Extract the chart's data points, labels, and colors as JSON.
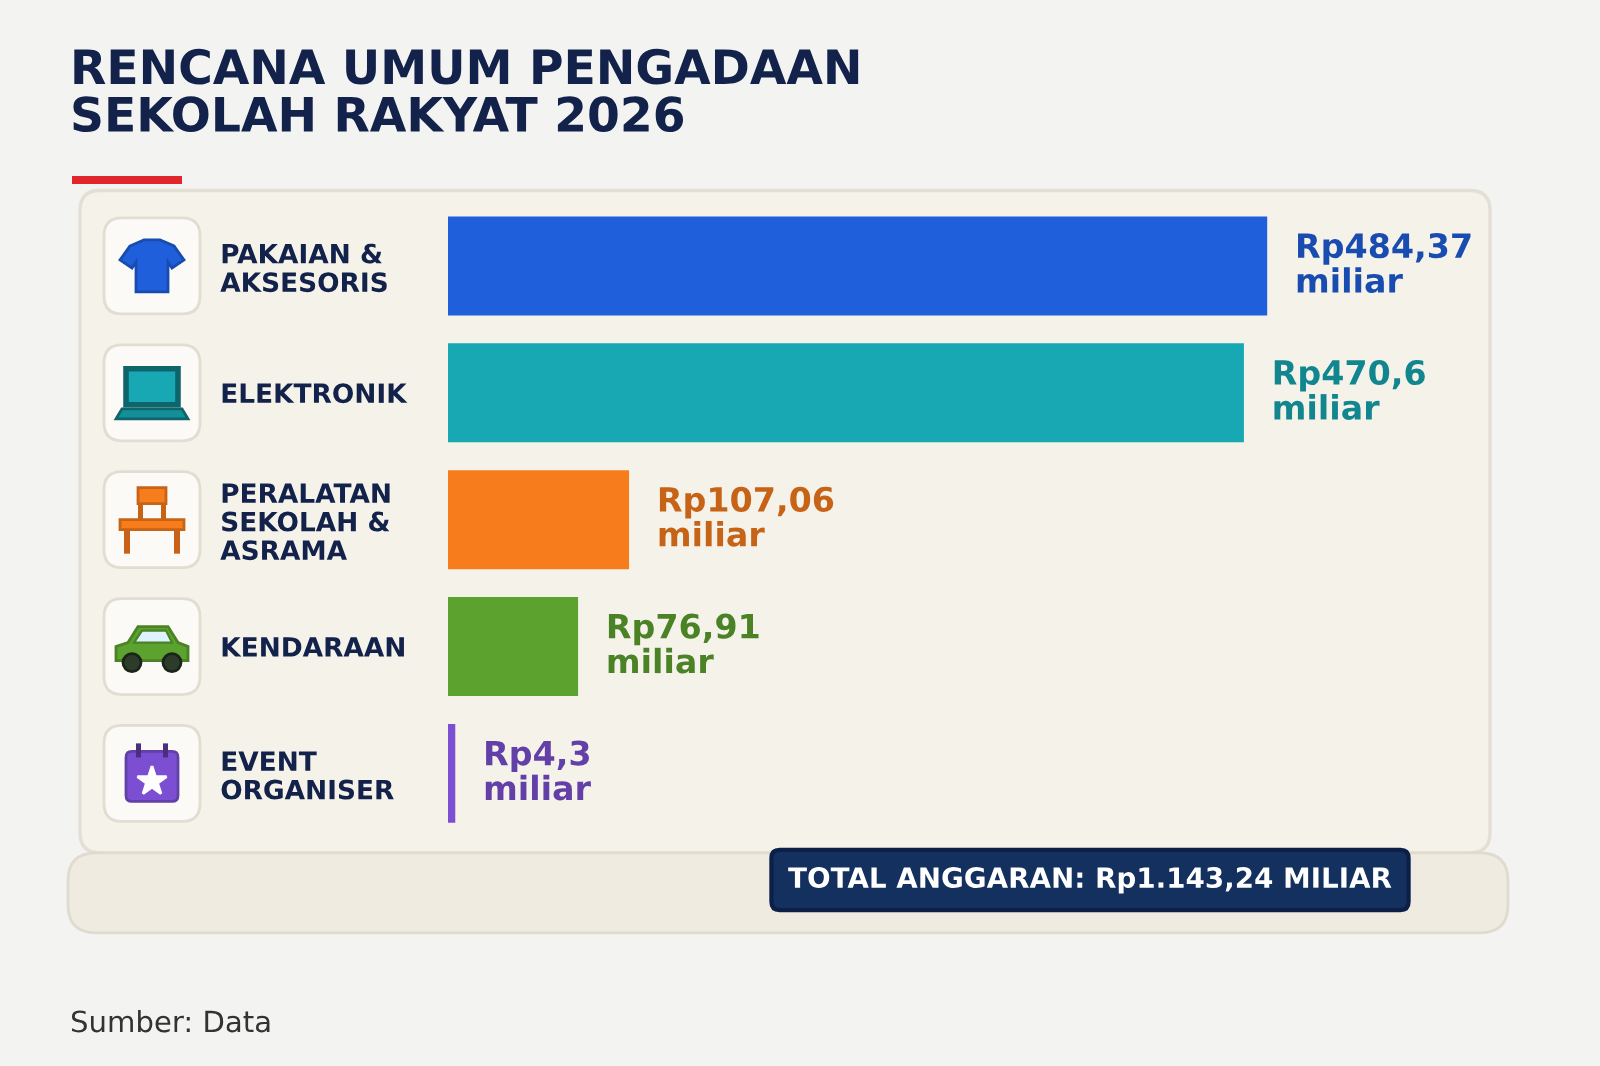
{
  "chart_data": {
    "type": "bar",
    "orientation": "horizontal",
    "title": "RENCANA UMUM PENGADAAN\nSEKOLAH RAKYAT 2026",
    "categories": [
      "PAKAIAN &\nAKSESORIS",
      "ELEKTRONIK",
      "PERALATAN\nSEKOLAH &\nASRAMA",
      "KENDARAAN",
      "EVENT\nORGANISER"
    ],
    "values": [
      484.37,
      470.6,
      107.06,
      76.91,
      4.3
    ],
    "colors": [
      "#1f5fdc",
      "#17a8b3",
      "#f77c1b",
      "#5ca22e",
      "#7c4fd2"
    ],
    "value_labels": [
      "Rp484,37\nmiliar",
      "Rp470,6\nmiliar",
      "Rp107,06\nmiliar",
      "Rp76,91\nmiliar",
      "Rp4,3\nmiliar"
    ],
    "annotations": [
      "TOTAL ANGGARAN: Rp1.143,24 MILIAR",
      "Sumber: Data"
    ],
    "tick_labels": "y"
  }
}
